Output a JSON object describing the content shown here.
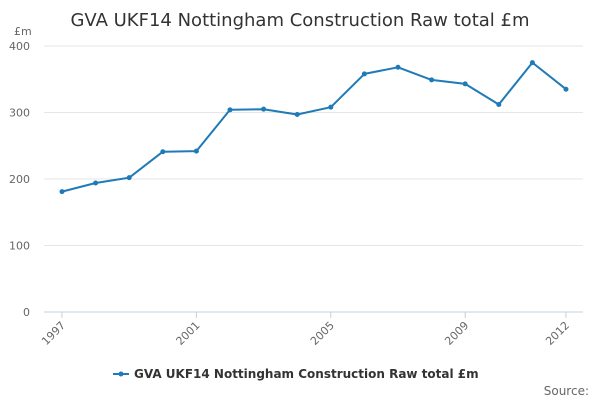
{
  "chart_data": {
    "type": "line",
    "title": "GVA UKF14 Nottingham Construction Raw total £m",
    "y_unit": "£m",
    "xlabel": "",
    "ylabel": "",
    "ylim": [
      0,
      400
    ],
    "y_ticks": [
      0,
      100,
      200,
      300,
      400
    ],
    "xlim": [
      1997,
      2012
    ],
    "x_ticks": [
      "1997",
      "2001",
      "2005",
      "2009",
      "2012"
    ],
    "grid": true,
    "legend_position": "bottom-center",
    "series": [
      {
        "name": "GVA UKF14 Nottingham Construction Raw total £m",
        "color": "#1f7ab8",
        "x": [
          1997,
          1998,
          1999,
          2000,
          2001,
          2002,
          2003,
          2004,
          2005,
          2006,
          2007,
          2008,
          2009,
          2010,
          2011,
          2012
        ],
        "values": [
          181,
          194,
          202,
          241,
          242,
          304,
          305,
          297,
          308,
          358,
          368,
          349,
          343,
          312,
          375,
          335
        ]
      }
    ]
  },
  "source_label": "Source:"
}
